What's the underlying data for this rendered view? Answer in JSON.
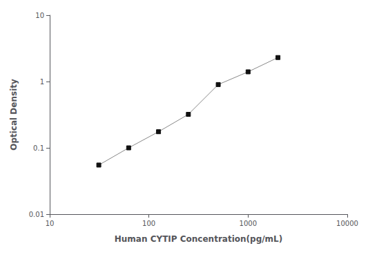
{
  "chart_data": {
    "type": "line",
    "x": [
      31.25,
      62.5,
      125,
      250,
      500,
      1000,
      2000
    ],
    "values": [
      0.055,
      0.1,
      0.175,
      0.32,
      0.9,
      1.4,
      2.3
    ],
    "xlabel": "Human CYTIP Concentration(pg/mL)",
    "ylabel": "Optical Density",
    "log": true,
    "xlim": [
      10,
      10000
    ],
    "ylim": [
      0.01,
      10
    ],
    "xticks": [
      10,
      100,
      1000,
      10000
    ],
    "yticks": [
      0.01,
      0.1,
      1,
      10
    ],
    "grid": false,
    "color": "#888888",
    "series": [
      {
        "name": null,
        "color": "#888888",
        "marker_color": "#111111"
      }
    ],
    "marker": "square",
    "line_style": "solid"
  }
}
